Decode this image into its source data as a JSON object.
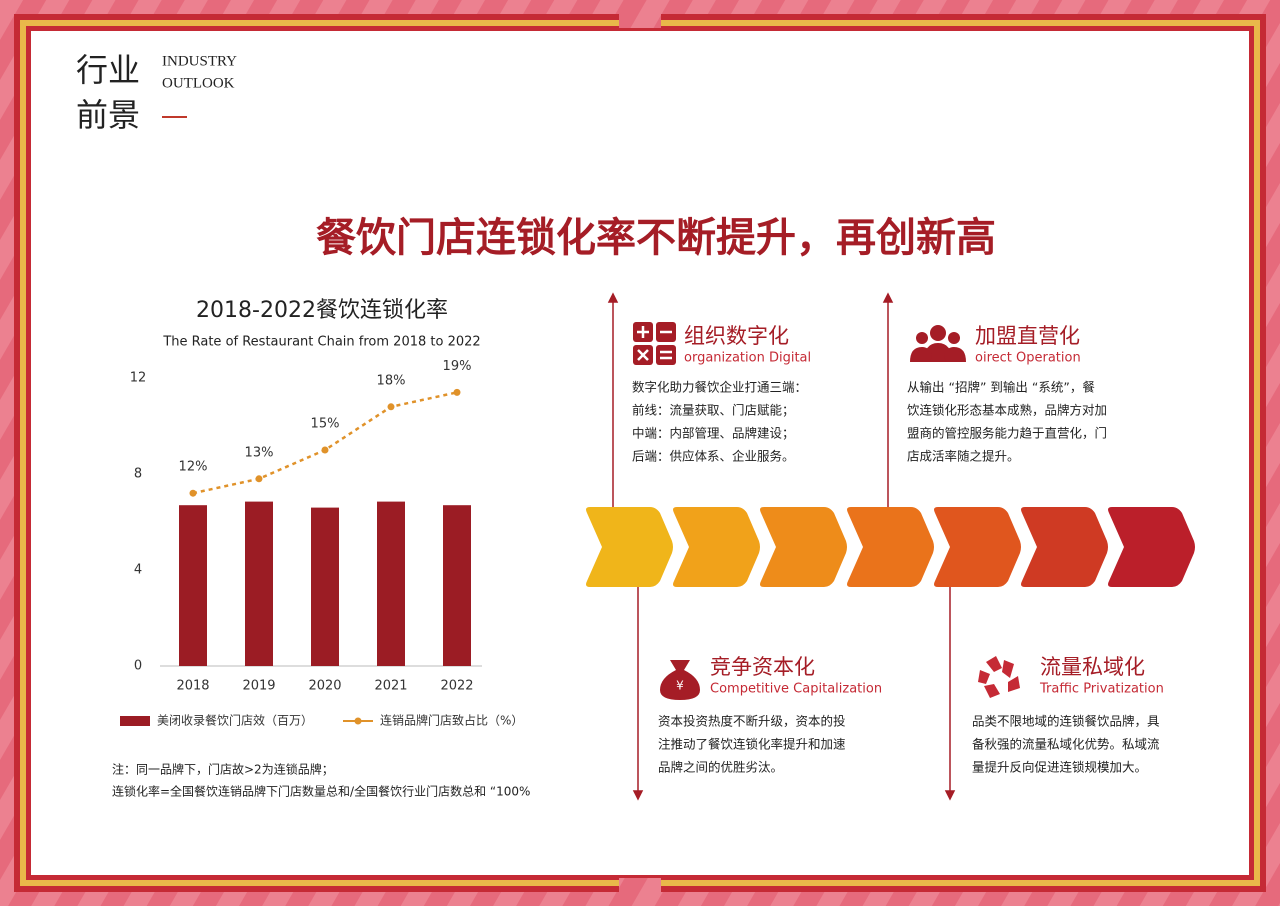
{
  "header": {
    "title_lines": [
      "行业",
      "前景"
    ],
    "subtitle_lines": [
      "INDUSTRY",
      "OUTLOOK"
    ]
  },
  "headline": "餐饮门店连锁化率不断提升，再创新高",
  "chart_data": {
    "type": "bar",
    "title": "2018-2022餐饮连锁化率",
    "subtitle": "The Rate of Restaurant Chain from 2018 to 2022",
    "categories": [
      "2018",
      "2019",
      "2020",
      "2021",
      "2022"
    ],
    "series": [
      {
        "name": "美闭收录餐饮门店效（百万）",
        "color": "#9b1c24",
        "values": [
          6.7,
          6.85,
          6.6,
          6.85,
          6.7
        ]
      },
      {
        "name": "连销品牌门店致占比（%）",
        "color": "#e0922a",
        "type": "line",
        "axis": "y2",
        "values": [
          12,
          13,
          15,
          18,
          19
        ],
        "value_labels": [
          "12%",
          "13%",
          "15%",
          "18%",
          "19%"
        ]
      }
    ],
    "ylim": [
      0,
      12
    ],
    "yticks": [
      0,
      4,
      8,
      12
    ],
    "y2lim": [
      0,
      20
    ]
  },
  "notes": [
    "注：同一品牌下，门店故>2为连锁品牌；",
    "连锁化率=全国餐饮连销品牌下门店数量总和/全国餐饮行业门店数总和 “100%"
  ],
  "steps": [
    {
      "title": "组织数字化",
      "subtitle": "organization Digital",
      "lines": [
        "数字化助力餐饮企业打通三端：",
        "前线：流量获取、门店赋能；",
        "中端：内部管理、品牌建设；",
        "后端：供应体系、企业服务。"
      ]
    },
    {
      "title": "加盟直营化",
      "subtitle": "oirect Operation",
      "lines": [
        "从输出 “招牌” 到输出 “系统”，餐",
        "饮连锁化形态基本成熟，品牌方对加",
        "盟商的管控服务能力趋于直营化，门",
        "店成活率随之提升。"
      ]
    },
    {
      "title": "竞争资本化",
      "subtitle": "Competitive Capitalization",
      "lines": [
        "资本投资热度不断升级，资本的投",
        "注推动了餐饮连锁化率提升和加速",
        "品牌之间的优胜劣汰。"
      ]
    },
    {
      "title": "流量私域化",
      "subtitle": "Traffic Privatization",
      "lines": [
        "品类不限地域的连锁餐饮品牌，具",
        "备秋强的流量私域化优势。私域流",
        "量提升反向促进连锁规模加大。"
      ]
    }
  ]
}
